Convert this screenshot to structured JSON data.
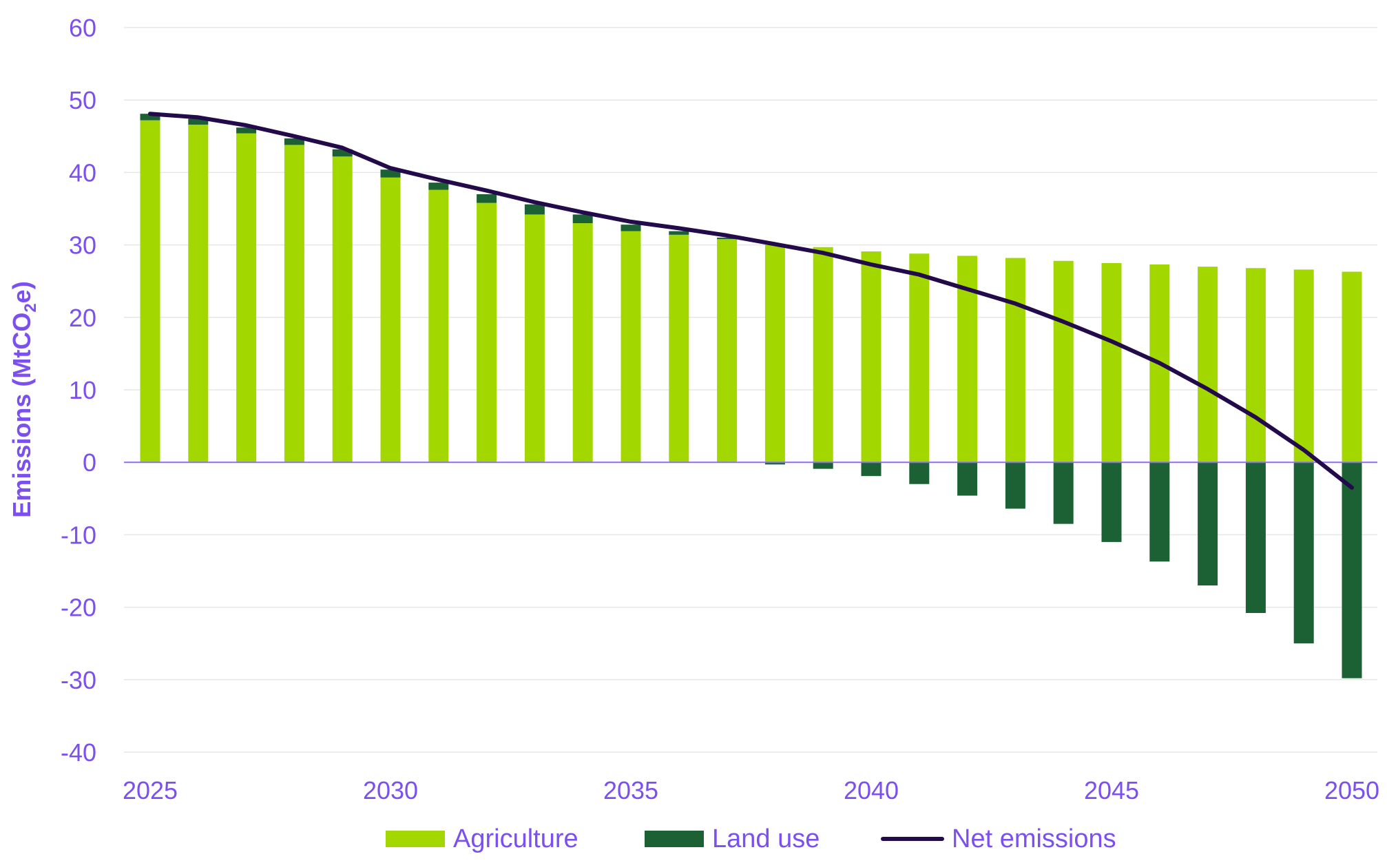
{
  "chart_data": {
    "type": "bar",
    "stacked": true,
    "title": "",
    "xlabel": "",
    "ylabel": "Emissions (MtCO₂e)",
    "ylabel_parts": {
      "main": "Emissions (MtCO",
      "sub": "2",
      "tail": "e)"
    },
    "ylim": [
      -40,
      60
    ],
    "y_ticks": [
      60,
      50,
      40,
      30,
      20,
      10,
      0,
      -10,
      -20,
      -30,
      -40
    ],
    "x_tick_labels": [
      "2025",
      "2030",
      "2035",
      "2040",
      "2045",
      "2050"
    ],
    "grid": true,
    "legend_position": "bottom",
    "categories": [
      "2025",
      "2026",
      "2027",
      "2028",
      "2029",
      "2030",
      "2031",
      "2032",
      "2033",
      "2034",
      "2035",
      "2036",
      "2037",
      "2038",
      "2039",
      "2040",
      "2041",
      "2042",
      "2043",
      "2044",
      "2045",
      "2046",
      "2047",
      "2048",
      "2049",
      "2050"
    ],
    "series": [
      {
        "name": "Agriculture",
        "kind": "bar",
        "color": "#a2d800",
        "values": [
          47.2,
          46.6,
          45.4,
          43.8,
          42.2,
          39.3,
          37.6,
          35.8,
          34.2,
          33.0,
          31.9,
          31.4,
          30.8,
          30.0,
          29.7,
          29.1,
          28.8,
          28.5,
          28.2,
          27.8,
          27.5,
          27.3,
          27.0,
          26.8,
          26.6,
          26.3
        ]
      },
      {
        "name": "Land use",
        "kind": "bar",
        "color": "#1c6133",
        "values": [
          0.9,
          0.8,
          0.8,
          0.9,
          1.0,
          1.1,
          1.0,
          1.2,
          1.4,
          1.2,
          0.9,
          0.5,
          0.2,
          -0.3,
          -0.9,
          -1.9,
          -3.0,
          -4.6,
          -6.4,
          -8.5,
          -11.0,
          -13.7,
          -17.0,
          -20.8,
          -25.0,
          -29.8
        ]
      },
      {
        "name": "Net emissions",
        "kind": "line",
        "color": "#230a4a",
        "values": [
          48.1,
          47.6,
          46.5,
          45.0,
          43.4,
          40.6,
          39.0,
          37.5,
          35.9,
          34.5,
          33.2,
          32.3,
          31.3,
          30.1,
          28.9,
          27.3,
          25.9,
          23.9,
          21.9,
          19.4,
          16.7,
          13.7,
          10.1,
          6.2,
          1.7,
          -3.5
        ]
      }
    ]
  },
  "colors": {
    "axis_text": "#7b4ff0",
    "grid": "#e6e6e6",
    "zero_line": "#8f6df2"
  }
}
